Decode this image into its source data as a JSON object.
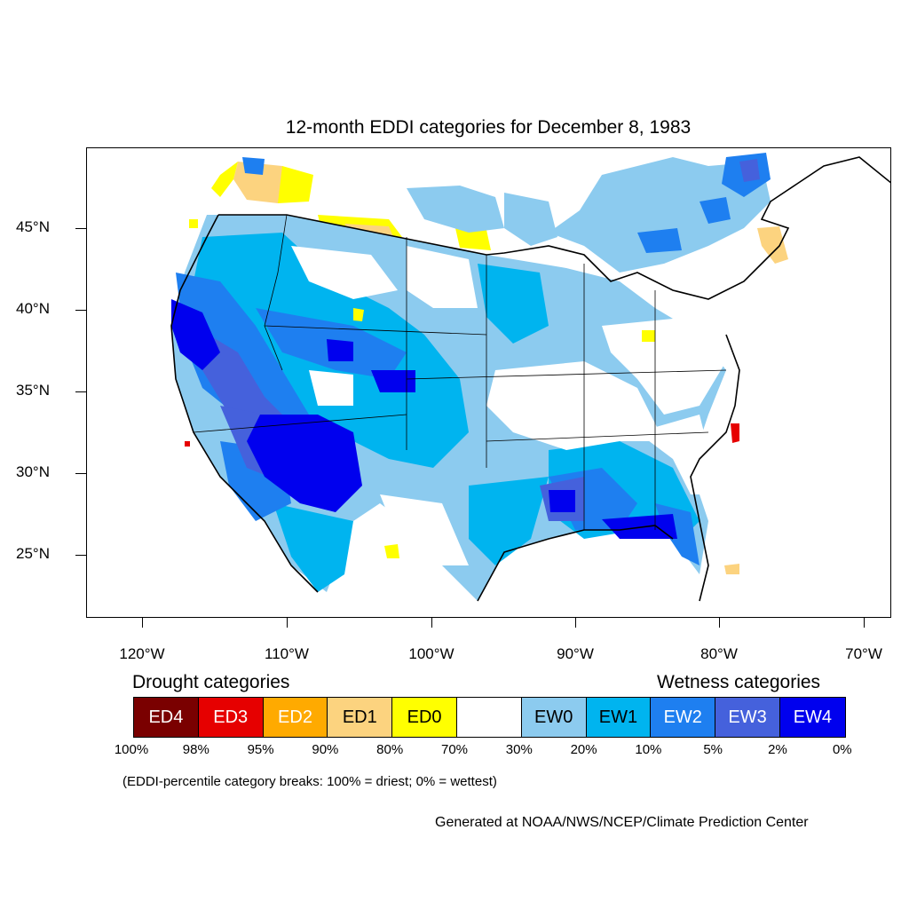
{
  "title": "12-month EDDI categories for December 8, 1983",
  "axes": {
    "lat_labels": [
      "45°N",
      "40°N",
      "35°N",
      "30°N",
      "25°N"
    ],
    "lon_labels": [
      "120°W",
      "110°W",
      "100°W",
      "90°W",
      "80°W",
      "70°W"
    ]
  },
  "legend": {
    "drought_heading": "Drought categories",
    "wetness_heading": "Wetness categories",
    "categories": [
      {
        "label": "ED4",
        "color": "#7a0000",
        "text_color": "#ffffff"
      },
      {
        "label": "ED3",
        "color": "#e60000",
        "text_color": "#ffffff"
      },
      {
        "label": "ED2",
        "color": "#ffaa00",
        "text_color": "#ffffff"
      },
      {
        "label": "ED1",
        "color": "#fcd37f",
        "text_color": "#000000"
      },
      {
        "label": "ED0",
        "color": "#ffff00",
        "text_color": "#000000"
      },
      {
        "label": "",
        "color": "#ffffff",
        "text_color": "#000000"
      },
      {
        "label": "EW0",
        "color": "#8ccbef",
        "text_color": "#000000"
      },
      {
        "label": "EW1",
        "color": "#00b4ef",
        "text_color": "#000000"
      },
      {
        "label": "EW2",
        "color": "#1e7ff0",
        "text_color": "#ffffff"
      },
      {
        "label": "EW3",
        "color": "#4561dc",
        "text_color": "#ffffff"
      },
      {
        "label": "EW4",
        "color": "#0000ee",
        "text_color": "#ffffff"
      }
    ],
    "percentiles": [
      "100%",
      "98%",
      "95%",
      "90%",
      "80%",
      "70%",
      "30%",
      "20%",
      "10%",
      "5%",
      "2%",
      "0%"
    ]
  },
  "note": "(EDDI-percentile category breaks: 100% = driest; 0% = wettest)",
  "credit": "Generated at NOAA/NWS/NCEP/Climate Prediction Center"
}
